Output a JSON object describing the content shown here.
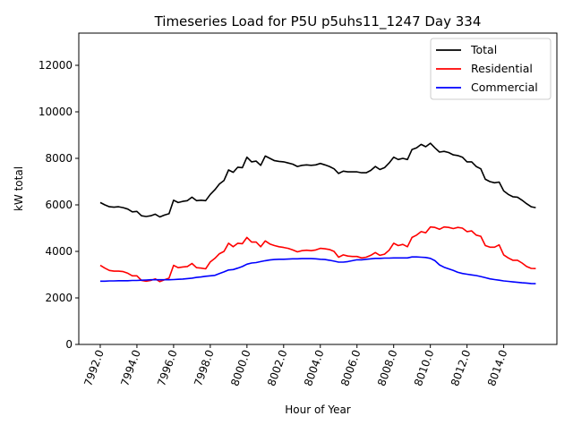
{
  "chart_data": {
    "type": "line",
    "title": "Timeseries Load for P5U p5uhs11_1247  Day 334",
    "xlabel": "Hour of Year",
    "ylabel": "kW total",
    "x_start": 7992.0,
    "x_step": 0.25,
    "xlim": [
      7990.83,
      8016.9
    ],
    "ylim": [
      0,
      13385
    ],
    "xticks": [
      7992,
      7994,
      7996,
      7998,
      8000,
      8002,
      8004,
      8006,
      8008,
      8010,
      8012,
      8014
    ],
    "xtick_labels": [
      "7992.0",
      "7994.0",
      "7996.0",
      "7998.0",
      "8000.0",
      "8002.0",
      "8004.0",
      "8006.0",
      "8008.0",
      "8010.0",
      "8012.0",
      "8014.0"
    ],
    "yticks": [
      0,
      2000,
      4000,
      6000,
      8000,
      10000,
      12000
    ],
    "ytick_labels": [
      "0",
      "2000",
      "4000",
      "6000",
      "8000",
      "10000",
      "12000"
    ],
    "grid": false,
    "legend_position": "top-right",
    "series": [
      {
        "name": "Total",
        "color": "#000000",
        "values": [
          6100,
          6000,
          5920,
          5900,
          5920,
          5880,
          5820,
          5700,
          5720,
          5530,
          5500,
          5530,
          5600,
          5480,
          5560,
          5620,
          6200,
          6100,
          6150,
          6180,
          6330,
          6180,
          6200,
          6180,
          6450,
          6650,
          6900,
          7050,
          7500,
          7400,
          7620,
          7600,
          8050,
          7850,
          7880,
          7700,
          8100,
          8000,
          7900,
          7870,
          7850,
          7800,
          7750,
          7650,
          7700,
          7720,
          7700,
          7720,
          7780,
          7720,
          7650,
          7550,
          7350,
          7450,
          7420,
          7420,
          7420,
          7380,
          7380,
          7480,
          7650,
          7520,
          7600,
          7800,
          8050,
          7950,
          8000,
          7950,
          8380,
          8450,
          8600,
          8500,
          8650,
          8450,
          8270,
          8300,
          8250,
          8150,
          8120,
          8050,
          7850,
          7850,
          7650,
          7550,
          7100,
          7000,
          6950,
          6980,
          6600,
          6450,
          6350,
          6330,
          6200,
          6050,
          5920,
          5880
        ]
      },
      {
        "name": "Residential",
        "color": "#ff0000",
        "values": [
          3400,
          3280,
          3180,
          3150,
          3150,
          3130,
          3060,
          2950,
          2950,
          2750,
          2720,
          2750,
          2820,
          2700,
          2780,
          2850,
          3400,
          3300,
          3330,
          3350,
          3480,
          3300,
          3280,
          3250,
          3550,
          3700,
          3900,
          4000,
          4350,
          4200,
          4350,
          4330,
          4600,
          4400,
          4400,
          4200,
          4450,
          4320,
          4250,
          4200,
          4170,
          4130,
          4060,
          3980,
          4030,
          4050,
          4030,
          4060,
          4130,
          4110,
          4080,
          4000,
          3750,
          3850,
          3800,
          3780,
          3780,
          3720,
          3750,
          3830,
          3950,
          3830,
          3880,
          4050,
          4350,
          4250,
          4300,
          4200,
          4600,
          4700,
          4850,
          4800,
          5050,
          5030,
          4950,
          5050,
          5030,
          4980,
          5030,
          5000,
          4850,
          4880,
          4700,
          4650,
          4250,
          4180,
          4180,
          4280,
          3850,
          3720,
          3620,
          3620,
          3500,
          3350,
          3270,
          3260
        ]
      },
      {
        "name": "Commercial",
        "color": "#0000ff",
        "values": [
          2720,
          2720,
          2730,
          2730,
          2740,
          2740,
          2740,
          2750,
          2750,
          2760,
          2770,
          2780,
          2780,
          2780,
          2780,
          2780,
          2790,
          2800,
          2810,
          2830,
          2850,
          2880,
          2900,
          2930,
          2950,
          2970,
          3050,
          3120,
          3200,
          3220,
          3280,
          3350,
          3450,
          3500,
          3520,
          3560,
          3600,
          3630,
          3650,
          3660,
          3660,
          3670,
          3680,
          3680,
          3690,
          3690,
          3690,
          3680,
          3660,
          3650,
          3620,
          3580,
          3540,
          3540,
          3560,
          3600,
          3640,
          3640,
          3660,
          3680,
          3700,
          3700,
          3710,
          3710,
          3720,
          3720,
          3720,
          3720,
          3760,
          3760,
          3750,
          3740,
          3700,
          3600,
          3420,
          3320,
          3250,
          3180,
          3100,
          3050,
          3020,
          2990,
          2960,
          2920,
          2870,
          2820,
          2790,
          2760,
          2730,
          2710,
          2690,
          2670,
          2650,
          2640,
          2620,
          2610
        ]
      }
    ]
  }
}
